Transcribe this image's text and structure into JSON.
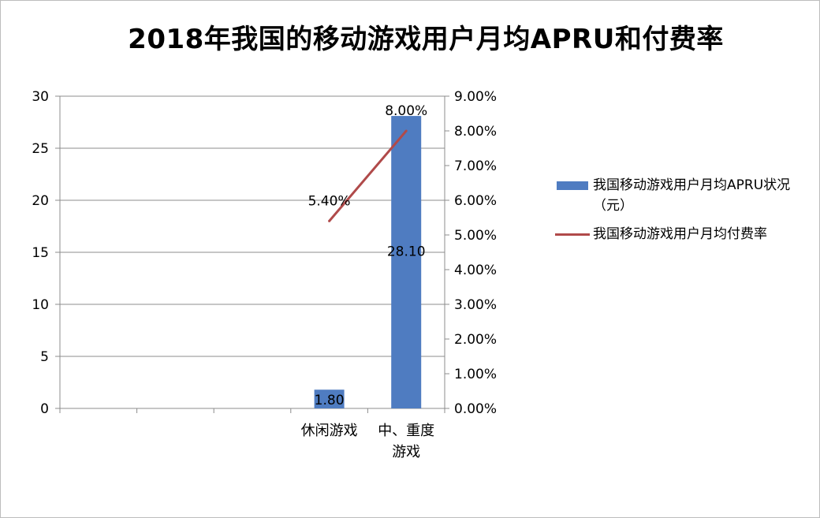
{
  "chart_data": {
    "type": "bar",
    "title": "2018年我国的移动游戏用户月均APRU和付费率",
    "categories": [
      "",
      "",
      "",
      "休闲游戏",
      "中、重度游戏"
    ],
    "category_lines": [
      [],
      [],
      [],
      [
        "休闲游戏"
      ],
      [
        "中、重度",
        "游戏"
      ]
    ],
    "series": [
      {
        "name": "我国移动游戏用户月均APRU状况（元）",
        "type": "bar",
        "axis": "left",
        "values": [
          null,
          null,
          null,
          1.8,
          28.1
        ],
        "data_labels": [
          "",
          "",
          "",
          "1.80",
          "28.10"
        ],
        "color": "#4f7cc1"
      },
      {
        "name": "我国移动游戏用户月均付费率",
        "type": "line",
        "axis": "right",
        "values": [
          null,
          null,
          null,
          5.4,
          8.0
        ],
        "data_labels": [
          "",
          "",
          "",
          "5.40%",
          "8.00%"
        ],
        "color": "#b04a4a"
      }
    ],
    "y_left": {
      "min": 0,
      "max": 30,
      "ticks": [
        "0",
        "5",
        "10",
        "15",
        "20",
        "25",
        "30"
      ]
    },
    "y_right": {
      "min": 0,
      "max": 9,
      "ticks": [
        "0.00%",
        "1.00%",
        "2.00%",
        "3.00%",
        "4.00%",
        "5.00%",
        "6.00%",
        "7.00%",
        "8.00%",
        "9.00%"
      ]
    },
    "grid": true,
    "legend_position": "right"
  }
}
